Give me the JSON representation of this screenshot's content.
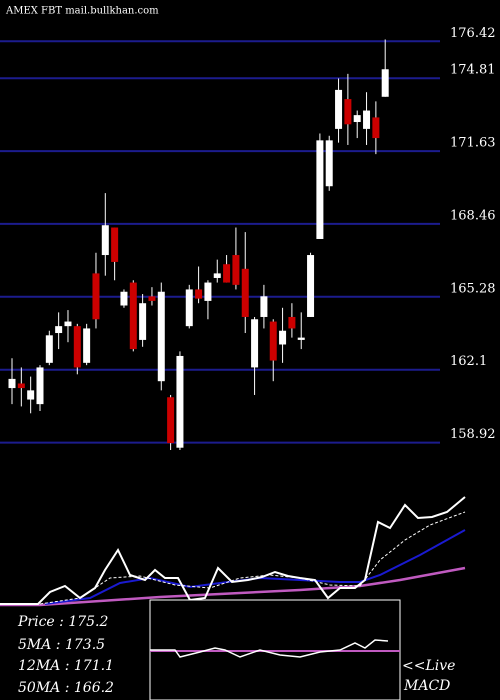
{
  "chart_data": {
    "type": "candlestick",
    "title": "AMEX FBT mail.bullkhan.com",
    "ylim": [
      158.6,
      176.65
    ],
    "yticks": [
      176.42,
      174.81,
      171.63,
      168.46,
      165.28,
      162.1,
      158.92
    ],
    "grid": true,
    "up_color": "#ffffff",
    "down_color": "#cc0000",
    "grid_color": "#1c1c8e",
    "open": [
      161.3,
      161.5,
      160.8,
      160.6,
      162.4,
      163.7,
      164.0,
      164.0,
      162.4,
      166.3,
      167.1,
      168.3,
      164.9,
      165.9,
      163.4,
      165.3,
      161.6,
      160.9,
      158.7,
      164.0,
      165.6,
      165.1,
      166.1,
      166.7,
      167.1,
      166.5,
      162.2,
      164.4,
      164.2,
      163.2,
      164.4,
      163.4,
      164.4,
      167.8,
      170.1,
      172.6,
      173.9,
      172.9,
      172.6,
      173.1,
      174.0
    ],
    "high": [
      162.6,
      162.2,
      161.8,
      162.3,
      163.8,
      164.6,
      164.7,
      164.1,
      164.1,
      167.2,
      169.8,
      168.3,
      165.6,
      166.0,
      165.4,
      165.7,
      165.9,
      161.0,
      162.9,
      165.8,
      166.6,
      166.0,
      166.9,
      167.1,
      168.3,
      168.1,
      164.4,
      165.8,
      164.3,
      164.8,
      165.0,
      164.6,
      167.2,
      172.4,
      172.3,
      174.8,
      175.0,
      173.4,
      174.2,
      173.8,
      176.5
    ],
    "low": [
      160.6,
      160.5,
      160.2,
      160.3,
      162.3,
      163.0,
      163.3,
      161.9,
      162.3,
      163.9,
      166.2,
      166.0,
      164.8,
      162.9,
      163.1,
      164.9,
      161.2,
      158.6,
      158.6,
      163.9,
      165.0,
      164.3,
      165.9,
      165.9,
      165.6,
      163.7,
      161.0,
      163.9,
      161.6,
      162.4,
      163.5,
      163.0,
      164.4,
      167.8,
      169.9,
      172.0,
      171.9,
      172.2,
      171.9,
      171.5,
      174.0
    ],
    "close": [
      161.7,
      161.3,
      161.2,
      162.2,
      163.6,
      164.0,
      164.2,
      162.2,
      163.9,
      164.3,
      168.4,
      166.8,
      165.5,
      163.0,
      165.0,
      165.1,
      165.5,
      158.9,
      162.7,
      165.6,
      165.2,
      165.9,
      166.3,
      165.9,
      165.8,
      164.4,
      164.3,
      165.3,
      162.5,
      163.8,
      163.9,
      163.5,
      167.1,
      172.1,
      172.1,
      174.3,
      172.8,
      173.2,
      173.4,
      172.2,
      175.2
    ],
    "summary": [
      "Price  : 175.2",
      "5MA    : 173.5",
      "12MA  : 171.1",
      "50MA  : 166.2"
    ],
    "live_label": "<<Live",
    "indicator_label": "MACD"
  }
}
